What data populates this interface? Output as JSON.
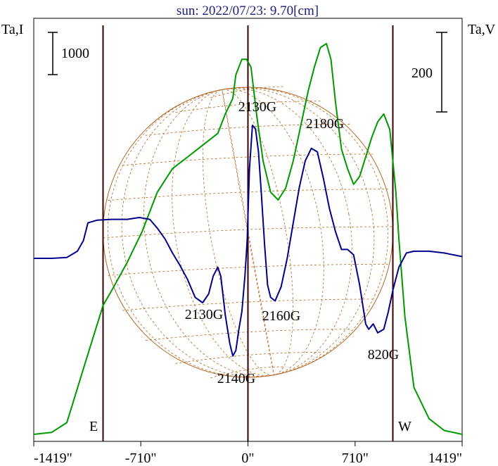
{
  "title": "sun: 2022/07/23: 9.70[cm]",
  "left_axis_label": "Ta,I",
  "right_axis_label": "Ta,V",
  "left_scale_label": "1000",
  "right_scale_label": "200",
  "east_label": "E",
  "west_label": "W",
  "colors": {
    "stokes_i": "#009900",
    "stokes_v": "#00008b",
    "disk": "#b5651d",
    "frame": "#000000",
    "marker": "#3a0000"
  },
  "chart_data": {
    "type": "line",
    "x_ticks": [
      "-1419\"",
      "-710\"",
      "0\"",
      "710\"",
      "1419\""
    ],
    "x_tick_values": [
      -1419,
      -710,
      0,
      710,
      1419
    ],
    "xlim": [
      -1419,
      1419
    ],
    "limb_markers_arcsec": [
      -960,
      960
    ],
    "annotations": [
      {
        "text": "2130G",
        "x": 0
      },
      {
        "text": "2180G",
        "x": 520
      },
      {
        "text": "2130G",
        "x": -300
      },
      {
        "text": "2160G",
        "x": 230
      },
      {
        "text": "2140G",
        "x": -60
      },
      {
        "text": "820G",
        "x": 910
      }
    ],
    "series": [
      {
        "key": "I",
        "x": [
          -1419,
          -1300,
          -1200,
          -1080,
          -1000,
          -960,
          -900,
          -800,
          -700,
          -600,
          -500,
          -400,
          -300,
          -200,
          -150,
          -100,
          -80,
          -40,
          -10,
          20,
          60,
          100,
          150,
          200,
          250,
          300,
          350,
          400,
          440,
          480,
          520,
          550,
          580,
          620,
          660,
          700,
          740,
          780,
          820,
          860,
          900,
          940,
          980,
          1000,
          1040,
          1100,
          1200,
          1300,
          1419
        ],
        "y": [
          0.0,
          0.005,
          0.03,
          0.18,
          0.28,
          0.33,
          0.37,
          0.44,
          0.52,
          0.62,
          0.68,
          0.71,
          0.74,
          0.77,
          0.82,
          0.86,
          0.92,
          0.96,
          0.96,
          0.94,
          0.81,
          0.7,
          0.62,
          0.6,
          0.63,
          0.7,
          0.79,
          0.88,
          0.94,
          0.99,
          1.0,
          0.96,
          0.85,
          0.73,
          0.68,
          0.64,
          0.66,
          0.71,
          0.76,
          0.8,
          0.82,
          0.78,
          0.62,
          0.5,
          0.3,
          0.12,
          0.04,
          0.01,
          0.0
        ]
      },
      {
        "key": "V",
        "x": [
          -1419,
          -1300,
          -1200,
          -1130,
          -1090,
          -1060,
          -1000,
          -900,
          -800,
          -720,
          -650,
          -600,
          -550,
          -500,
          -450,
          -400,
          -350,
          -300,
          -260,
          -230,
          -200,
          -180,
          -150,
          -120,
          -100,
          -80,
          -60,
          -40,
          -20,
          -5,
          10,
          30,
          50,
          70,
          90,
          110,
          130,
          150,
          180,
          220,
          260,
          300,
          340,
          380,
          420,
          460,
          500,
          540,
          580,
          620,
          660,
          700,
          740,
          780,
          800,
          830,
          860,
          900,
          930,
          960,
          1000,
          1050,
          1100,
          1200,
          1300,
          1419
        ],
        "y": [
          0.0,
          0.0,
          0.005,
          0.04,
          0.1,
          0.2,
          0.215,
          0.22,
          0.22,
          0.23,
          0.22,
          0.17,
          0.11,
          0.03,
          -0.04,
          -0.12,
          -0.22,
          -0.25,
          -0.2,
          -0.1,
          -0.05,
          -0.1,
          -0.32,
          -0.48,
          -0.55,
          -0.52,
          -0.4,
          -0.3,
          -0.1,
          0.1,
          0.5,
          0.75,
          0.73,
          0.6,
          0.35,
          0.08,
          -0.15,
          -0.22,
          -0.24,
          -0.16,
          0.0,
          0.2,
          0.4,
          0.55,
          0.62,
          0.6,
          0.45,
          0.28,
          0.15,
          0.05,
          0.05,
          0.02,
          -0.15,
          -0.37,
          -0.4,
          -0.37,
          -0.42,
          -0.4,
          -0.3,
          -0.18,
          -0.05,
          0.03,
          0.04,
          0.04,
          0.03,
          0.01
        ]
      }
    ]
  }
}
